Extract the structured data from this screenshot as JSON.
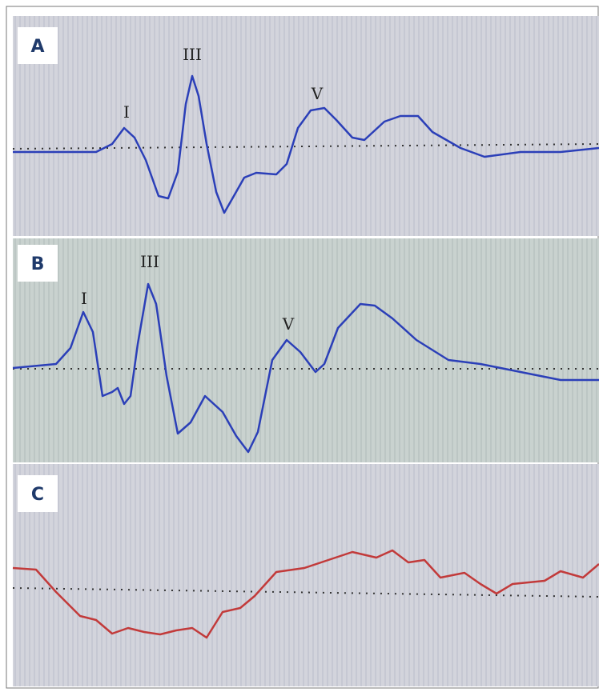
{
  "panels": [
    {
      "label": "A",
      "waves": [
        "I",
        "III",
        "V"
      ]
    },
    {
      "label": "B",
      "waves": [
        "I",
        "III",
        "V"
      ]
    },
    {
      "label": "C"
    }
  ]
}
